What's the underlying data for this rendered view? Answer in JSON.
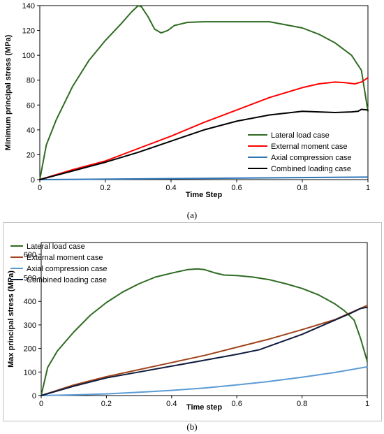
{
  "chart_data": [
    {
      "id": "a",
      "type": "line",
      "title": "",
      "xlabel": "Time Step",
      "ylabel": "Minimum principal stress (MPa)",
      "xlim": [
        0,
        1
      ],
      "ylim": [
        0,
        140
      ],
      "xticks": [
        "0",
        "0.2",
        "0.4",
        "0.6",
        "0.8",
        "1"
      ],
      "yticks": [
        "0",
        "20",
        "40",
        "60",
        "80",
        "100",
        "120",
        "140"
      ],
      "grid": false,
      "legend_position": "bottom-right",
      "series": [
        {
          "name": "Lateral load case",
          "color": "#2e6b21",
          "points": [
            [
              0,
              0
            ],
            [
              0.02,
              28
            ],
            [
              0.05,
              48
            ],
            [
              0.1,
              75
            ],
            [
              0.15,
              96
            ],
            [
              0.2,
              112
            ],
            [
              0.25,
              126
            ],
            [
              0.28,
              135
            ],
            [
              0.3,
              140
            ],
            [
              0.31,
              139
            ],
            [
              0.33,
              131
            ],
            [
              0.35,
              121
            ],
            [
              0.37,
              118
            ],
            [
              0.39,
              120
            ],
            [
              0.41,
              124
            ],
            [
              0.45,
              126.5
            ],
            [
              0.5,
              127
            ],
            [
              0.6,
              127
            ],
            [
              0.7,
              127
            ],
            [
              0.8,
              122
            ],
            [
              0.85,
              117
            ],
            [
              0.9,
              110
            ],
            [
              0.95,
              100
            ],
            [
              0.98,
              88
            ],
            [
              1,
              55
            ]
          ]
        },
        {
          "name": "External moment case",
          "color": "#ff0000",
          "points": [
            [
              0,
              0
            ],
            [
              0.1,
              8
            ],
            [
              0.2,
              15
            ],
            [
              0.3,
              25
            ],
            [
              0.4,
              35
            ],
            [
              0.5,
              46
            ],
            [
              0.6,
              56
            ],
            [
              0.7,
              66
            ],
            [
              0.8,
              74
            ],
            [
              0.85,
              77
            ],
            [
              0.9,
              78.5
            ],
            [
              0.93,
              78
            ],
            [
              0.96,
              77
            ],
            [
              0.98,
              78.5
            ],
            [
              1,
              82
            ]
          ]
        },
        {
          "name": "Axial compression case",
          "color": "#2e75b6",
          "points": [
            [
              0,
              0
            ],
            [
              0.5,
              1
            ],
            [
              1,
              2
            ]
          ]
        },
        {
          "name": "Combined loading case",
          "color": "#000000",
          "points": [
            [
              0,
              0
            ],
            [
              0.1,
              7
            ],
            [
              0.2,
              14
            ],
            [
              0.3,
              22
            ],
            [
              0.4,
              31
            ],
            [
              0.5,
              40
            ],
            [
              0.6,
              47
            ],
            [
              0.7,
              52
            ],
            [
              0.8,
              55
            ],
            [
              0.85,
              54.5
            ],
            [
              0.9,
              54
            ],
            [
              0.95,
              54.5
            ],
            [
              0.97,
              55
            ],
            [
              0.98,
              56.5
            ],
            [
              1,
              56
            ]
          ]
        }
      ]
    },
    {
      "id": "b",
      "type": "line",
      "title": "",
      "xlabel": "Time step",
      "ylabel": "Max principal stress (MPa)",
      "xlim": [
        0,
        1
      ],
      "ylim": [
        0,
        650
      ],
      "xticks": [
        "0",
        "0.2",
        "0.4",
        "0.6",
        "0.8",
        "1"
      ],
      "yticks": [
        "0",
        "100",
        "200",
        "300",
        "400",
        "500",
        "600"
      ],
      "grid": false,
      "legend_position": "top-left",
      "series": [
        {
          "name": "Lateral load case",
          "color": "#2e6b21",
          "points": [
            [
              0,
              0
            ],
            [
              0.02,
              120
            ],
            [
              0.05,
              190
            ],
            [
              0.1,
              270
            ],
            [
              0.15,
              340
            ],
            [
              0.2,
              395
            ],
            [
              0.25,
              440
            ],
            [
              0.3,
              475
            ],
            [
              0.35,
              503
            ],
            [
              0.4,
              520
            ],
            [
              0.45,
              535
            ],
            [
              0.48,
              538
            ],
            [
              0.5,
              535
            ],
            [
              0.53,
              522
            ],
            [
              0.56,
              512
            ],
            [
              0.6,
              510
            ],
            [
              0.65,
              503
            ],
            [
              0.7,
              492
            ],
            [
              0.75,
              475
            ],
            [
              0.8,
              455
            ],
            [
              0.85,
              428
            ],
            [
              0.9,
              390
            ],
            [
              0.93,
              360
            ],
            [
              0.96,
              320
            ],
            [
              0.98,
              240
            ],
            [
              1,
              145
            ]
          ]
        },
        {
          "name": "External moment case",
          "color": "#a0451d",
          "points": [
            [
              0,
              0
            ],
            [
              0.1,
              45
            ],
            [
              0.2,
              80
            ],
            [
              0.3,
              110
            ],
            [
              0.4,
              140
            ],
            [
              0.5,
              170
            ],
            [
              0.6,
              205
            ],
            [
              0.7,
              240
            ],
            [
              0.8,
              280
            ],
            [
              0.9,
              322
            ],
            [
              1,
              383
            ]
          ]
        },
        {
          "name": "Axial compression case",
          "color": "#5b9bd5",
          "points": [
            [
              0,
              0
            ],
            [
              0.1,
              3
            ],
            [
              0.2,
              7
            ],
            [
              0.3,
              14
            ],
            [
              0.4,
              22
            ],
            [
              0.5,
              32
            ],
            [
              0.6,
              45
            ],
            [
              0.7,
              60
            ],
            [
              0.8,
              78
            ],
            [
              0.9,
              98
            ],
            [
              1,
              122
            ]
          ]
        },
        {
          "name": "Combined loading case",
          "color": "#0f1b3c",
          "points": [
            [
              0,
              0
            ],
            [
              0.1,
              40
            ],
            [
              0.2,
              75
            ],
            [
              0.3,
              100
            ],
            [
              0.4,
              125
            ],
            [
              0.5,
              150
            ],
            [
              0.6,
              175
            ],
            [
              0.67,
              195
            ],
            [
              0.7,
              210
            ],
            [
              0.75,
              235
            ],
            [
              0.8,
              260
            ],
            [
              0.85,
              290
            ],
            [
              0.9,
              320
            ],
            [
              0.95,
              350
            ],
            [
              0.98,
              370
            ],
            [
              1,
              375
            ]
          ]
        }
      ]
    }
  ],
  "captions": {
    "a": "(a)",
    "b": "(b)"
  }
}
